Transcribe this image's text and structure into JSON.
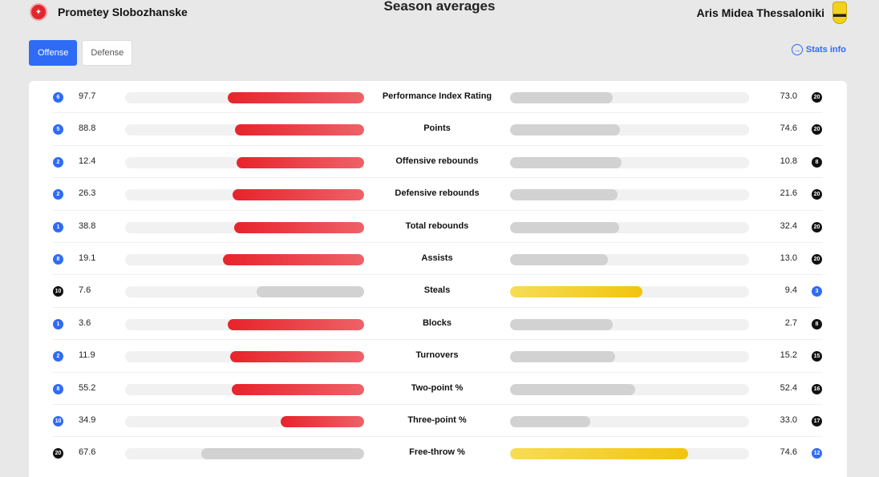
{
  "header": {
    "title": "Season averages",
    "home_team": "Prometey Slobozhanske",
    "away_team": "Aris Midea Thessaloniki"
  },
  "tabs": [
    {
      "label": "Offense",
      "active": true
    },
    {
      "label": "Defense",
      "active": false
    }
  ],
  "stats_info_label": "Stats info",
  "colors": {
    "home_leader": "#e8232b",
    "away_leader": "#f1c40f",
    "trailer": "#d2d2d2",
    "accent": "#2f6bf5"
  },
  "stats": [
    {
      "label": "Performance Index Rating",
      "home_value": "97.7",
      "home_rank": "6",
      "home_rank_color": "blue",
      "home_bar": 0.57,
      "home_style": "red",
      "away_value": "73.0",
      "away_rank": "20",
      "away_rank_color": "black",
      "away_bar": 0.43,
      "away_style": "gray"
    },
    {
      "label": "Points",
      "home_value": "88.8",
      "home_rank": "5",
      "home_rank_color": "blue",
      "home_bar": 0.54,
      "home_style": "red",
      "away_value": "74.6",
      "away_rank": "20",
      "away_rank_color": "black",
      "away_bar": 0.46,
      "away_style": "gray"
    },
    {
      "label": "Offensive rebounds",
      "home_value": "12.4",
      "home_rank": "2",
      "home_rank_color": "blue",
      "home_bar": 0.535,
      "home_style": "red",
      "away_value": "10.8",
      "away_rank": "8",
      "away_rank_color": "black",
      "away_bar": 0.465,
      "away_style": "gray"
    },
    {
      "label": "Defensive rebounds",
      "home_value": "26.3",
      "home_rank": "2",
      "home_rank_color": "blue",
      "home_bar": 0.55,
      "home_style": "red",
      "away_value": "21.6",
      "away_rank": "20",
      "away_rank_color": "black",
      "away_bar": 0.45,
      "away_style": "gray"
    },
    {
      "label": "Total rebounds",
      "home_value": "38.8",
      "home_rank": "1",
      "home_rank_color": "blue",
      "home_bar": 0.545,
      "home_style": "red",
      "away_value": "32.4",
      "away_rank": "20",
      "away_rank_color": "black",
      "away_bar": 0.455,
      "away_style": "gray"
    },
    {
      "label": "Assists",
      "home_value": "19.1",
      "home_rank": "8",
      "home_rank_color": "blue",
      "home_bar": 0.59,
      "home_style": "red",
      "away_value": "13.0",
      "away_rank": "20",
      "away_rank_color": "black",
      "away_bar": 0.41,
      "away_style": "gray"
    },
    {
      "label": "Steals",
      "home_value": "7.6",
      "home_rank": "10",
      "home_rank_color": "black",
      "home_bar": 0.45,
      "home_style": "gray",
      "away_value": "9.4",
      "away_rank": "3",
      "away_rank_color": "blue",
      "away_bar": 0.555,
      "away_style": "yellow"
    },
    {
      "label": "Blocks",
      "home_value": "3.6",
      "home_rank": "1",
      "home_rank_color": "blue",
      "home_bar": 0.57,
      "home_style": "red",
      "away_value": "2.7",
      "away_rank": "8",
      "away_rank_color": "black",
      "away_bar": 0.43,
      "away_style": "gray"
    },
    {
      "label": "Turnovers",
      "home_value": "11.9",
      "home_rank": "2",
      "home_rank_color": "blue",
      "home_bar": 0.56,
      "home_style": "red",
      "away_value": "15.2",
      "away_rank": "15",
      "away_rank_color": "black",
      "away_bar": 0.44,
      "away_style": "gray"
    },
    {
      "label": "Two-point %",
      "home_value": "55.2",
      "home_rank": "8",
      "home_rank_color": "blue",
      "home_bar": 0.555,
      "home_style": "red",
      "away_value": "52.4",
      "away_rank": "16",
      "away_rank_color": "black",
      "away_bar": 0.525,
      "away_style": "gray"
    },
    {
      "label": "Three-point %",
      "home_value": "34.9",
      "home_rank": "10",
      "home_rank_color": "blue",
      "home_bar": 0.35,
      "home_style": "red",
      "away_value": "33.0",
      "away_rank": "17",
      "away_rank_color": "black",
      "away_bar": 0.335,
      "away_style": "gray"
    },
    {
      "label": "Free-throw %",
      "home_value": "67.6",
      "home_rank": "20",
      "home_rank_color": "black",
      "home_bar": 0.68,
      "home_style": "gray",
      "away_value": "74.6",
      "away_rank": "12",
      "away_rank_color": "blue",
      "away_bar": 0.745,
      "away_style": "yellow"
    }
  ]
}
